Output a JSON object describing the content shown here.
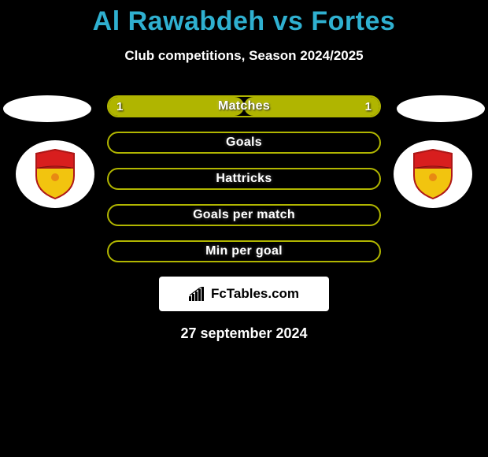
{
  "title": {
    "player_a": "Al Rawabdeh",
    "vs": "vs",
    "player_b": "Fortes",
    "color": "#2fb0d0"
  },
  "subtitle": "Club competitions, Season 2024/2025",
  "accent_border": "#b0b500",
  "accent_fill": "#b0b500",
  "background_color": "#000000",
  "stats": [
    {
      "label": "Matches",
      "left_value": "1",
      "right_value": "1",
      "left_pct": 50,
      "right_pct": 50,
      "show_values": true
    },
    {
      "label": "Goals",
      "left_value": "",
      "right_value": "",
      "left_pct": 0,
      "right_pct": 0,
      "show_values": false
    },
    {
      "label": "Hattricks",
      "left_value": "",
      "right_value": "",
      "left_pct": 0,
      "right_pct": 0,
      "show_values": false
    },
    {
      "label": "Goals per match",
      "left_value": "",
      "right_value": "",
      "left_pct": 0,
      "right_pct": 0,
      "show_values": false
    },
    {
      "label": "Min per goal",
      "left_value": "",
      "right_value": "",
      "left_pct": 0,
      "right_pct": 0,
      "show_values": false
    }
  ],
  "club_badge": {
    "shield_top_color": "#d81e1e",
    "shield_bottom_color": "#f2c40f",
    "shield_outline": "#ae1717"
  },
  "branding": {
    "text": "FcTables.com",
    "icon_color": "#000000"
  },
  "date": "27 september 2024"
}
